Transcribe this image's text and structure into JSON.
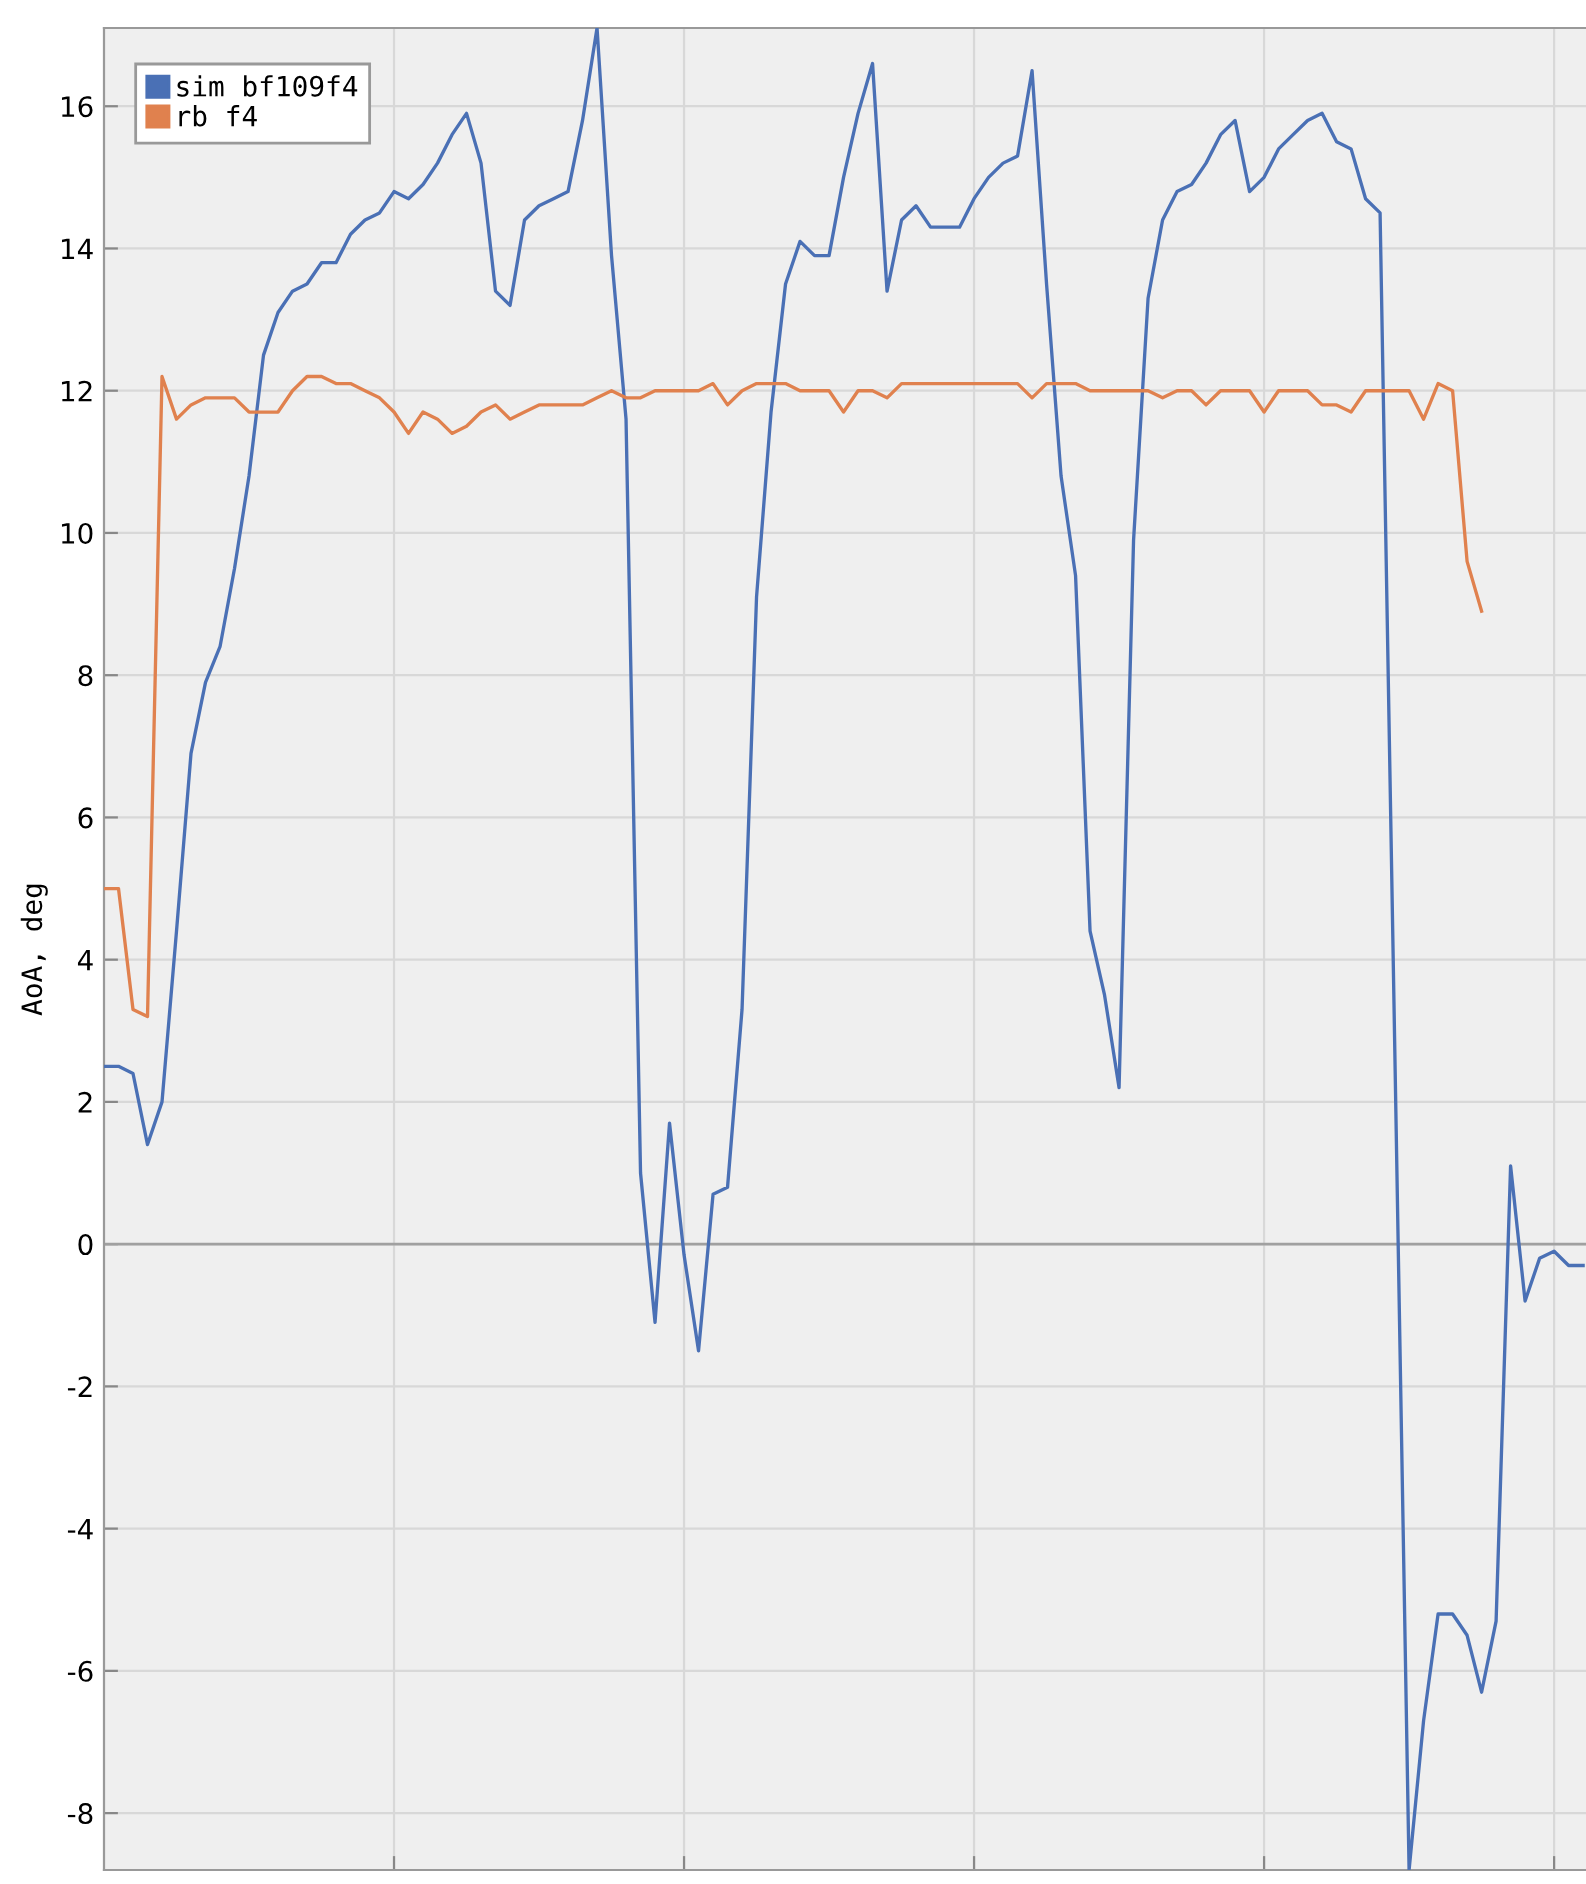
{
  "chart_data": {
    "type": "line",
    "ylabel": "AoA, deg",
    "categories": [
      null,
      null,
      null,
      null,
      null,
      null,
      null,
      null,
      null,
      null,
      null,
      null,
      null,
      null,
      null,
      null,
      null,
      null,
      null,
      null,
      null,
      null,
      null,
      null,
      null,
      null,
      null,
      null,
      null,
      null,
      null,
      null,
      null,
      null,
      null,
      null,
      null,
      null,
      null,
      null,
      null,
      null,
      null,
      null,
      null,
      null,
      null,
      null,
      null,
      null,
      null,
      null,
      null,
      null,
      null,
      null,
      null,
      null,
      null,
      null,
      null,
      null,
      null,
      null,
      null,
      null,
      null,
      null,
      null,
      null,
      null,
      null,
      null,
      null,
      null,
      null,
      null,
      null,
      null,
      null,
      null,
      null,
      null,
      null,
      null,
      null,
      null,
      null,
      null,
      null,
      null,
      null,
      null,
      null,
      null,
      null,
      null,
      null,
      null,
      null,
      null,
      null,
      null
    ],
    "ylim": [
      -8.8,
      17.1
    ],
    "yticks": [
      -8,
      -6,
      -4,
      -2,
      0,
      2,
      4,
      6,
      8,
      10,
      12,
      14,
      16
    ],
    "tick_labels": "y",
    "grid": true,
    "legend": "top left",
    "line_style": "solid",
    "marker": "none",
    "ref_lines": [
      {
        "axis": "y",
        "value": 0,
        "color": "#a0a0a0"
      }
    ],
    "series": [
      {
        "name": "sim bf109f4",
        "color": "#4a70b5",
        "values": [
          2.5,
          2.5,
          2.4,
          1.4,
          2.0,
          4.4,
          6.9,
          7.9,
          8.4,
          9.5,
          10.8,
          12.5,
          13.1,
          13.4,
          13.5,
          13.8,
          13.8,
          14.2,
          14.4,
          14.5,
          14.8,
          14.7,
          14.9,
          15.2,
          15.6,
          15.9,
          15.2,
          13.4,
          13.2,
          14.4,
          14.6,
          14.7,
          14.8,
          15.8,
          17.1,
          13.9,
          11.6,
          1.0,
          -1.1,
          1.7,
          -0.15,
          -1.5,
          0.7,
          0.8,
          3.3,
          9.1,
          11.7,
          13.5,
          14.1,
          13.9,
          13.9,
          15.0,
          15.9,
          16.6,
          13.4,
          14.4,
          14.6,
          14.3,
          14.3,
          14.3,
          14.7,
          15.0,
          15.2,
          15.3,
          16.5,
          13.5,
          10.8,
          9.4,
          4.4,
          3.5,
          2.2,
          9.9,
          13.3,
          14.4,
          14.8,
          14.9,
          15.2,
          15.6,
          15.8,
          14.8,
          15.0,
          15.4,
          15.6,
          15.8,
          15.9,
          15.5,
          15.4,
          14.7,
          14.5,
          2.9,
          -8.8,
          -6.7,
          -5.2,
          -5.2,
          -5.5,
          -6.3,
          -5.3,
          1.1,
          -0.8,
          -0.2,
          -0.1,
          -0.3,
          -0.3
        ]
      },
      {
        "name": "rb f4",
        "color": "#e0814e",
        "values": [
          5.0,
          5.0,
          3.3,
          3.2,
          12.2,
          11.6,
          11.8,
          11.9,
          11.9,
          11.9,
          11.7,
          11.7,
          11.7,
          12.0,
          12.2,
          12.2,
          12.1,
          12.1,
          12.0,
          11.9,
          11.7,
          11.4,
          11.7,
          11.6,
          11.4,
          11.5,
          11.7,
          11.8,
          11.6,
          11.7,
          11.8,
          11.8,
          11.8,
          11.8,
          11.9,
          12.0,
          11.9,
          11.9,
          12.0,
          12.0,
          12.0,
          12.0,
          12.1,
          11.8,
          12.0,
          12.1,
          12.1,
          12.1,
          12.0,
          12.0,
          12.0,
          11.7,
          12.0,
          12.0,
          11.9,
          12.1,
          12.1,
          12.1,
          12.1,
          12.1,
          12.1,
          12.1,
          12.1,
          12.1,
          11.9,
          12.1,
          12.1,
          12.1,
          12.0,
          12.0,
          12.0,
          12.0,
          12.0,
          11.9,
          12.0,
          12.0,
          11.8,
          12.0,
          12.0,
          12.0,
          11.7,
          12.0,
          12.0,
          12.0,
          11.8,
          11.8,
          11.7,
          12.0,
          12.0,
          12.0,
          12.0,
          11.6,
          12.1,
          12.0,
          9.6,
          8.9,
          null,
          null,
          null,
          null,
          null,
          null,
          null
        ]
      }
    ]
  }
}
